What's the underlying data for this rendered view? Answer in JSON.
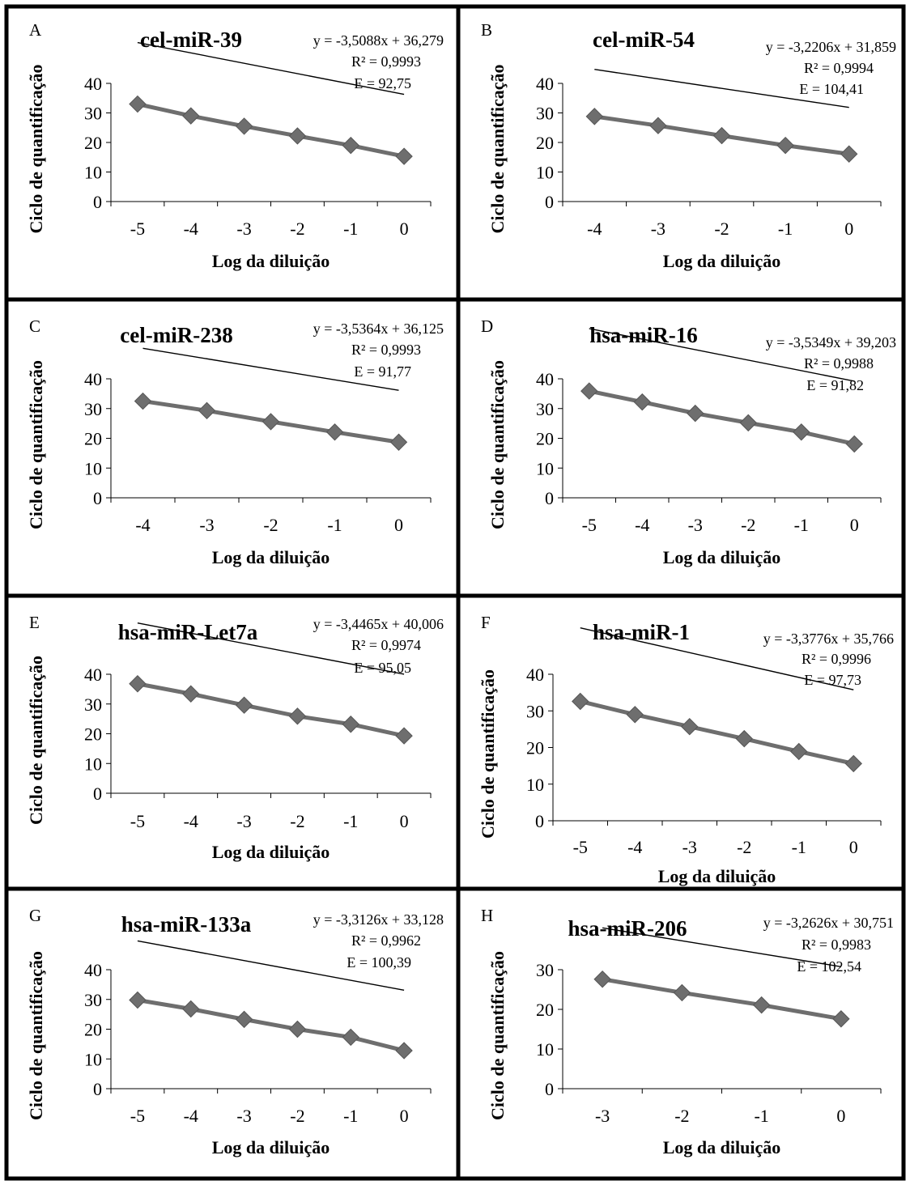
{
  "chart_data": [
    {
      "panel": "A",
      "type": "scatter",
      "title": "cel-miR-39",
      "equation": "y = -3,5088x + 36,279",
      "r2": "R² = 0,9993",
      "efficiency": "E = 92,75",
      "xlabel": "Log da diluição",
      "ylabel": "Ciclo de quantificação",
      "xlim": [
        -5.5,
        0.5
      ],
      "ylim": [
        0,
        40
      ],
      "xticks": [
        -5,
        -4,
        -3,
        -2,
        -1,
        0
      ],
      "yticks": [
        0,
        10,
        20,
        30,
        40
      ],
      "x": [
        -5,
        -4,
        -3,
        -2,
        -1,
        0
      ],
      "y": [
        33.0,
        29.0,
        25.5,
        22.2,
        19.0,
        15.3
      ],
      "trendline": {
        "slope": -3.5088,
        "intercept": 36.279
      }
    },
    {
      "panel": "B",
      "type": "scatter",
      "title": "cel-miR-54",
      "equation": "y = -3,2206x + 31,859",
      "r2": "R² = 0,9994",
      "efficiency": "E = 104,41",
      "xlabel": "Log da diluição",
      "ylabel": "Ciclo de quantificação",
      "xlim": [
        -4.5,
        0.5
      ],
      "ylim": [
        0,
        40
      ],
      "xticks": [
        -4,
        -3,
        -2,
        -1,
        0
      ],
      "yticks": [
        0,
        10,
        20,
        30,
        40
      ],
      "x": [
        -4,
        -3,
        -2,
        -1,
        0
      ],
      "y": [
        28.8,
        25.7,
        22.3,
        19.0,
        16.1
      ],
      "trendline": {
        "slope": -3.2206,
        "intercept": 31.859
      }
    },
    {
      "panel": "C",
      "type": "scatter",
      "title": "cel-miR-238",
      "equation": "y = -3,5364x + 36,125",
      "r2": "R² = 0,9993",
      "efficiency": "E = 91,77",
      "xlabel": "Log da diluição",
      "ylabel": "Ciclo de quantificação",
      "xlim": [
        -4.5,
        0.5
      ],
      "ylim": [
        0,
        40
      ],
      "xticks": [
        -4,
        -3,
        -2,
        -1,
        0
      ],
      "yticks": [
        0,
        10,
        20,
        30,
        40
      ],
      "x": [
        -4,
        -3,
        -2,
        -1,
        0
      ],
      "y": [
        32.5,
        29.3,
        25.6,
        22.1,
        18.7
      ],
      "trendline": {
        "slope": -3.5364,
        "intercept": 36.125
      }
    },
    {
      "panel": "D",
      "type": "scatter",
      "title": "hsa-miR-16",
      "equation": "y = -3,5349x + 39,203",
      "r2": "R² = 0,9988",
      "efficiency": "E = 91,82",
      "xlabel": "Log da diluição",
      "ylabel": "Ciclo de quantificação",
      "xlim": [
        -5.5,
        0.5
      ],
      "ylim": [
        0,
        40
      ],
      "xticks": [
        -5,
        -4,
        -3,
        -2,
        -1,
        0
      ],
      "yticks": [
        0,
        10,
        20,
        30,
        40
      ],
      "x": [
        -5,
        -4,
        -3,
        -2,
        -1,
        0
      ],
      "y": [
        35.9,
        32.2,
        28.4,
        25.2,
        22.1,
        18.1
      ],
      "trendline": {
        "slope": -3.5349,
        "intercept": 39.203
      }
    },
    {
      "panel": "E",
      "type": "scatter",
      "title": "hsa-miR-Let7a",
      "equation": "y = -3,4465x + 40,006",
      "r2": "R² = 0,9974",
      "efficiency": "E = 95,05",
      "xlabel": "Log da diluição",
      "ylabel": "Ciclo de quantificação",
      "xlim": [
        -5.5,
        0.5
      ],
      "ylim": [
        0,
        40
      ],
      "xticks": [
        -5,
        -4,
        -3,
        -2,
        -1,
        0
      ],
      "yticks": [
        0,
        10,
        20,
        30,
        40
      ],
      "x": [
        -5,
        -4,
        -3,
        -2,
        -1,
        0
      ],
      "y": [
        36.8,
        33.4,
        29.6,
        25.9,
        23.2,
        19.3
      ],
      "trendline": {
        "slope": -3.4465,
        "intercept": 40.006
      }
    },
    {
      "panel": "F",
      "type": "scatter",
      "title": "hsa-miR-1",
      "equation": "y = -3,3776x + 35,766",
      "r2": "R² = 0,9996",
      "efficiency": "E = 97,73",
      "xlabel": "Log da diluição",
      "ylabel": "Ciclo de quantificação",
      "xlim": [
        -5.5,
        0.5
      ],
      "ylim": [
        0,
        40
      ],
      "xticks": [
        -5,
        -4,
        -3,
        -2,
        -1,
        0
      ],
      "yticks": [
        0,
        10,
        20,
        30,
        40
      ],
      "x": [
        -5,
        -4,
        -3,
        -2,
        -1,
        0
      ],
      "y": [
        32.6,
        29.0,
        25.7,
        22.4,
        18.9,
        15.6
      ],
      "trendline": {
        "slope": -3.3776,
        "intercept": 35.766
      }
    },
    {
      "panel": "G",
      "type": "scatter",
      "title": "hsa-miR-133a",
      "equation": "y = -3,3126x + 33,128",
      "r2": "R² = 0,9962",
      "efficiency": "E = 100,39",
      "xlabel": "Log da diluição",
      "ylabel": "Ciclo de quantificação",
      "xlim": [
        -5.5,
        0.5
      ],
      "ylim": [
        0,
        40
      ],
      "xticks": [
        -5,
        -4,
        -3,
        -2,
        -1,
        0
      ],
      "yticks": [
        0,
        10,
        20,
        30,
        40
      ],
      "x": [
        -5,
        -4,
        -3,
        -2,
        -1,
        0
      ],
      "y": [
        29.8,
        26.8,
        23.3,
        20.0,
        17.3,
        12.8
      ],
      "trendline": {
        "slope": -3.3126,
        "intercept": 33.128
      }
    },
    {
      "panel": "H",
      "type": "scatter",
      "title": "hsa-miR-206",
      "equation": "y = -3,2626x + 30,751",
      "r2": "R² = 0,9983",
      "efficiency": "E = 102,54",
      "xlabel": "Log da diluição",
      "ylabel": "Ciclo de quantificação",
      "xlim": [
        -3.5,
        0.5
      ],
      "ylim": [
        0,
        30
      ],
      "xticks": [
        -3,
        -2,
        -1,
        0
      ],
      "yticks": [
        0,
        10,
        20,
        30
      ],
      "x": [
        -3,
        -2,
        -1,
        0
      ],
      "y": [
        27.6,
        24.2,
        21.1,
        17.6
      ],
      "trendline": {
        "slope": -3.2626,
        "intercept": 30.751
      }
    }
  ]
}
